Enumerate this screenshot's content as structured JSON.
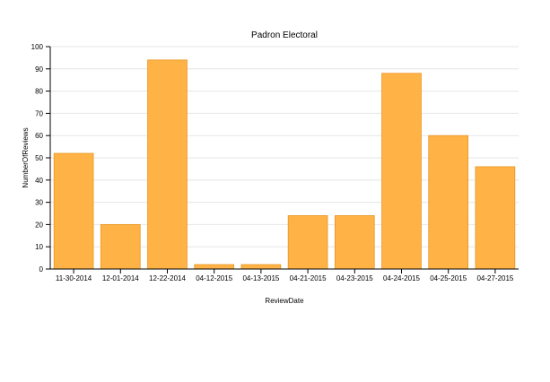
{
  "chart_data": {
    "type": "bar",
    "title": "Padron Electoral",
    "xlabel": "ReviewDate",
    "ylabel": "NumberOfReviews",
    "categories": [
      "11-30-2014",
      "12-01-2014",
      "12-22-2014",
      "04-12-2015",
      "04-13-2015",
      "04-21-2015",
      "04-23-2015",
      "04-24-2015",
      "04-25-2015",
      "04-27-2015"
    ],
    "values": [
      52,
      20,
      94,
      2,
      2,
      24,
      24,
      88,
      60,
      46
    ],
    "ylim": [
      0,
      100
    ],
    "yticks": [
      0,
      10,
      20,
      30,
      40,
      50,
      60,
      70,
      80,
      90,
      100
    ],
    "grid": true,
    "bar_color": "#ffb347",
    "bar_stroke": "#e8951f",
    "grid_color": "#e6e6e6"
  }
}
